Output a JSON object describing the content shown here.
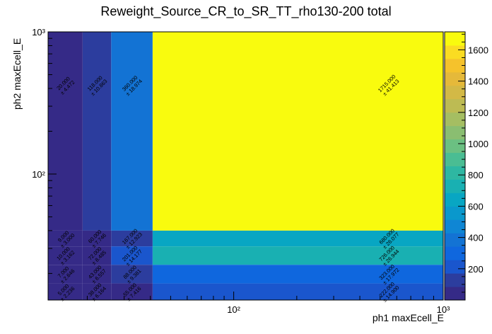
{
  "chart_data": {
    "type": "heatmap",
    "title": "Reweight_Source_CR_to_SR_TT_rho130-200 total",
    "xlabel": "ph1 maxEcell_E",
    "ylabel": "ph2 maxEcell_E",
    "x_scale": "log",
    "y_scale": "log",
    "xlim": [
      13,
      1000
    ],
    "ylim": [
      13,
      1000
    ],
    "x_ticks": [
      {
        "v": 100,
        "label": "10²"
      },
      {
        "v": 1000,
        "label": "10³"
      }
    ],
    "y_ticks": [
      {
        "v": 100,
        "label": "10²"
      },
      {
        "v": 1000,
        "label": "10³"
      }
    ],
    "x_edges": [
      13,
      19,
      26,
      41,
      1000
    ],
    "y_edges": [
      13,
      17,
      23,
      31,
      40,
      1000
    ],
    "colorbar": {
      "min": 0,
      "max": 1715,
      "ticks": [
        200,
        400,
        600,
        800,
        1000,
        1200,
        1400,
        1600
      ],
      "tick_labels": [
        "200",
        "400",
        "600",
        "800",
        "1000",
        "1200",
        "1400",
        "1600"
      ],
      "palette": [
        "#352a87",
        "#2c3d9e",
        "#1a56cd",
        "#0f67de",
        "#1373d4",
        "#0f86d4",
        "#0a98cc",
        "#08a6c3",
        "#19b0b2",
        "#2eb7a2",
        "#4abd93",
        "#6bc082",
        "#8abe71",
        "#a5be62",
        "#bdbb53",
        "#d3b946",
        "#e5b93a",
        "#f5c22c",
        "#fadc22",
        "#f9fb0e"
      ]
    },
    "cells": [
      {
        "xi": 3,
        "yi": 4,
        "value": 1715,
        "label": "1715.000",
        "err": "± 41.413"
      },
      {
        "xi": 3,
        "yi": 3,
        "value": 680,
        "label": "680.000",
        "err": "± 26.077"
      },
      {
        "xi": 3,
        "yi": 2,
        "value": 726,
        "label": "726.000",
        "err": "± 26.944"
      },
      {
        "xi": 3,
        "yi": 1,
        "value": 323,
        "label": "323.000",
        "err": "± 17.972"
      },
      {
        "xi": 3,
        "yi": 0,
        "value": 222,
        "label": "222.000",
        "err": "± 14.900"
      },
      {
        "xi": 2,
        "yi": 4,
        "value": 360,
        "label": "360.000",
        "err": "± 18.974"
      },
      {
        "xi": 2,
        "yi": 3,
        "value": 167,
        "label": "167.000",
        "err": "± 12.923"
      },
      {
        "xi": 2,
        "yi": 2,
        "value": 201,
        "label": "201.000",
        "err": "± 14.177"
      },
      {
        "xi": 2,
        "yi": 1,
        "value": 88,
        "label": "88.000",
        "err": "± 9.381"
      },
      {
        "xi": 2,
        "yi": 0,
        "value": 55,
        "label": "55.000",
        "err": "± 7.416"
      },
      {
        "xi": 1,
        "yi": 4,
        "value": 118,
        "label": "118.000",
        "err": "± 10.863"
      },
      {
        "xi": 1,
        "yi": 3,
        "value": 60,
        "label": "60.000",
        "err": "± 7.746"
      },
      {
        "xi": 1,
        "yi": 2,
        "value": 72,
        "label": "72.000",
        "err": "± 8.485"
      },
      {
        "xi": 1,
        "yi": 1,
        "value": 43,
        "label": "43.000",
        "err": "± 6.557"
      },
      {
        "xi": 1,
        "yi": 0,
        "value": 38,
        "label": "38.000",
        "err": "± 6.164"
      },
      {
        "xi": 0,
        "yi": 4,
        "value": 20,
        "label": "20.000",
        "err": "± 4.472"
      },
      {
        "xi": 0,
        "yi": 3,
        "value": 9,
        "label": "9.000",
        "err": "± 3.000"
      },
      {
        "xi": 0,
        "yi": 2,
        "value": 10,
        "label": "10.000",
        "err": "± 3.162"
      },
      {
        "xi": 0,
        "yi": 1,
        "value": 7,
        "label": "7.000",
        "err": "± 2.646"
      },
      {
        "xi": 0,
        "yi": 0,
        "value": 5,
        "label": "5.000",
        "err": "± 2.236"
      }
    ]
  }
}
